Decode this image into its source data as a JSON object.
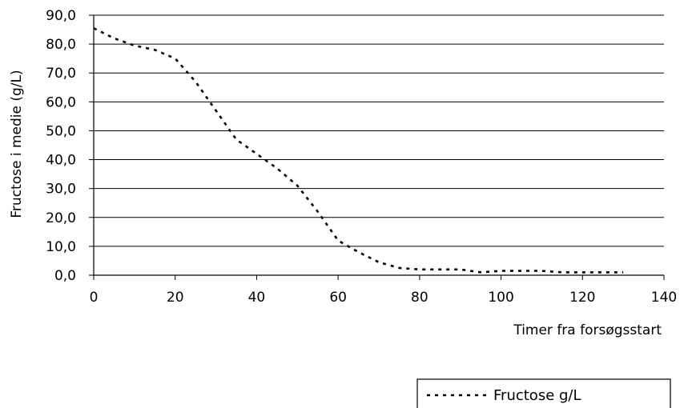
{
  "chart_data": {
    "type": "line",
    "xlabel": "Timer fra forsøgsstart",
    "ylabel": "Fructose i medie (g/L)",
    "xlim": [
      0,
      140
    ],
    "ylim": [
      0,
      90
    ],
    "x_ticks": [
      "0",
      "20",
      "40",
      "60",
      "80",
      "100",
      "120",
      "140"
    ],
    "y_ticks": [
      "0,0",
      "10,0",
      "20,0",
      "30,0",
      "40,0",
      "50,0",
      "60,0",
      "70,0",
      "80,0",
      "90,0"
    ],
    "grid": "horizontal",
    "legend_position": "bottom-right",
    "series": [
      {
        "name": "Fructose g/L",
        "style": "dotted",
        "color": "#000000",
        "x": [
          0,
          5,
          10,
          15,
          20,
          25,
          30,
          35,
          40,
          45,
          50,
          55,
          60,
          65,
          70,
          75,
          80,
          90,
          95,
          100,
          110,
          115,
          120,
          130
        ],
        "y": [
          85.5,
          82,
          79.5,
          78,
          75,
          67,
          57,
          47,
          42,
          37,
          31,
          22,
          12,
          8,
          4.5,
          2.5,
          2,
          2,
          1,
          1.5,
          1.5,
          1,
          1,
          1
        ]
      }
    ]
  }
}
